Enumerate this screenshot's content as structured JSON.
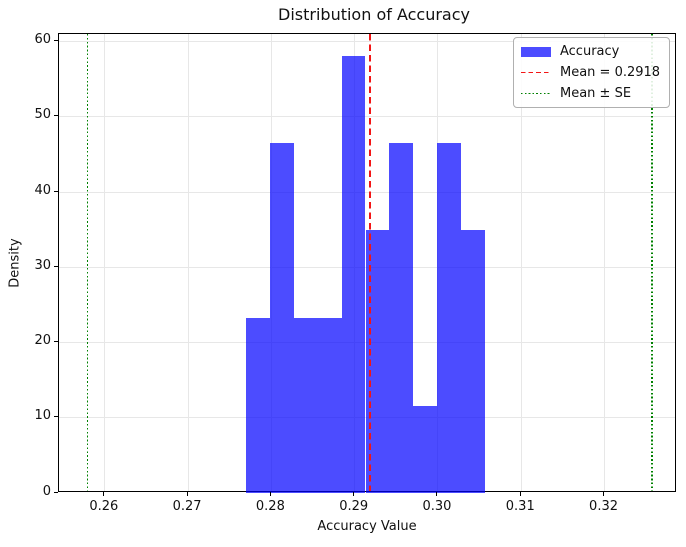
{
  "title": "Distribution of Accuracy",
  "axes": {
    "xlabel": "Accuracy Value",
    "ylabel": "Density"
  },
  "legend": {
    "position": "upper right",
    "items": [
      {
        "label": "Accuracy",
        "sample": "patch",
        "color": "#4c4cff"
      },
      {
        "label": "Mean = 0.2918",
        "sample": "dashed-line",
        "color": "#f31515"
      },
      {
        "label": "Mean ± SE",
        "sample": "dotted-line",
        "color": "#008000"
      }
    ]
  },
  "chart_data": {
    "type": "bar",
    "subtype": "density-histogram",
    "title": "Distribution of Accuracy",
    "xlabel": "Accuracy Value",
    "ylabel": "Density",
    "grid": true,
    "legend_position": "upper right",
    "xlim": [
      0.2545,
      0.3287
    ],
    "ylim": [
      0,
      61
    ],
    "x_tick_values": [
      0.26,
      0.27,
      0.28,
      0.29,
      0.3,
      0.31,
      0.32
    ],
    "x_tick_labels": [
      "0.26",
      "0.27",
      "0.28",
      "0.29",
      "0.30",
      "0.31",
      "0.32"
    ],
    "y_tick_values": [
      0,
      10,
      20,
      30,
      40,
      50,
      60
    ],
    "y_tick_labels": [
      "0",
      "10",
      "20",
      "30",
      "40",
      "50",
      "60"
    ],
    "histogram": {
      "bin_edges": [
        0.277,
        0.27986,
        0.28272,
        0.28558,
        0.28844,
        0.2913,
        0.29416,
        0.29702,
        0.29988,
        0.30274,
        0.3056
      ],
      "densities": [
        23.2,
        46.5,
        23.2,
        23.2,
        58.1,
        34.9,
        46.5,
        11.6,
        46.5,
        34.9
      ],
      "counts": [
        2,
        4,
        2,
        2,
        5,
        3,
        4,
        1,
        4,
        3
      ]
    },
    "mean": 0.2918,
    "mean_minus_se": 0.2579,
    "mean_plus_se": 0.3257,
    "colors": {
      "bars": "rgba(0,0,255,0.7)",
      "mean_line": "#f31515",
      "se_lines": "#008000",
      "grid": "#e7e7e7",
      "spines": "#000000"
    }
  }
}
